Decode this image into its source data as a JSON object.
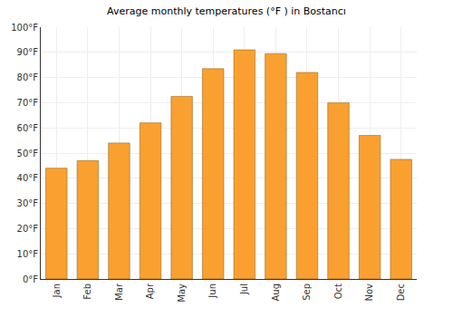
{
  "chart_data": {
    "type": "bar",
    "title": "Average monthly temperatures (°F ) in Bostancı",
    "categories": [
      "Jan",
      "Feb",
      "Mar",
      "Apr",
      "May",
      "Jun",
      "Jul",
      "Aug",
      "Sep",
      "Oct",
      "Nov",
      "Dec"
    ],
    "values": [
      44,
      47,
      54,
      62,
      72.5,
      83.5,
      91,
      89.5,
      82,
      70,
      57,
      47.5
    ],
    "color": "#f9a030",
    "ylim": [
      0,
      100
    ],
    "yticks": [
      {
        "value": 0,
        "label": "0°F"
      },
      {
        "value": 10,
        "label": "10°F"
      },
      {
        "value": 20,
        "label": "20°F"
      },
      {
        "value": 30,
        "label": "30°F"
      },
      {
        "value": 40,
        "label": "40°F"
      },
      {
        "value": 50,
        "label": "50°F"
      },
      {
        "value": 60,
        "label": "60°F"
      },
      {
        "value": 70,
        "label": "70°F"
      },
      {
        "value": 80,
        "label": "80°F"
      },
      {
        "value": 90,
        "label": "90°F"
      },
      {
        "value": 100,
        "label": "100°F"
      }
    ],
    "grid": true
  }
}
